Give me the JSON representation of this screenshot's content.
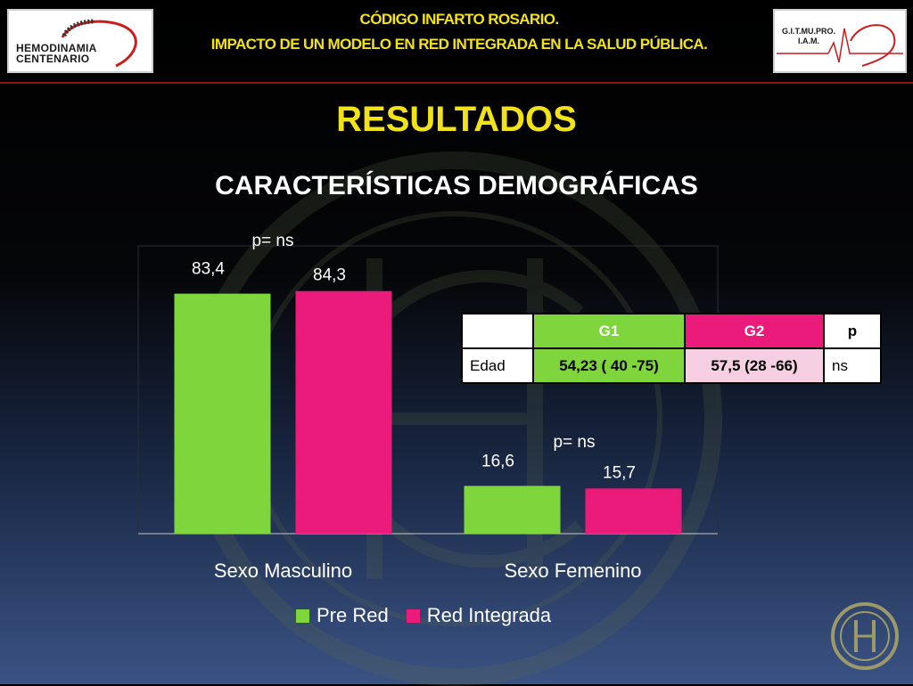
{
  "header": {
    "title_line1": "CÓDIGO INFARTO ROSARIO.",
    "title_line2": "IMPACTO DE UN MODELO EN RED INTEGRADA EN LA SALUD PÚBLICA.",
    "logo_left_line1": "HEMODINAMIA",
    "logo_left_line2": "CENTENARIO",
    "logo_right_line1": "G.I.T.MU.PRO.",
    "logo_right_line2": "I.A.M."
  },
  "section_title": "RESULTADOS",
  "subtitle": "CARACTERÍSTICAS DEMOGRÁFICAS",
  "chart_data": {
    "type": "bar",
    "categories": [
      "Sexo Masculino",
      "Sexo Femenino"
    ],
    "series": [
      {
        "name": "Pre Red",
        "values": [
          83.4,
          16.6
        ],
        "labels": [
          "83,4",
          "16,6"
        ],
        "color": "#7ed63c"
      },
      {
        "name": "Red Integrada",
        "values": [
          84.3,
          15.7
        ],
        "labels": [
          "84,3",
          "15,7"
        ],
        "color": "#ea1b7a"
      }
    ],
    "annotations": [
      "p= ns",
      "p= ns"
    ],
    "ylim": [
      0,
      100
    ],
    "legend": "bottom"
  },
  "table": {
    "header": [
      "",
      "G1",
      "G2",
      "p"
    ],
    "rows": [
      [
        "Edad",
        "54,23 ( 40 -75)",
        "57,5 (28 -66)",
        "ns"
      ]
    ],
    "colors": {
      "g1": "#7ed63c",
      "g2": "#ea1b7a",
      "g2_cell": "#f6d0e2"
    }
  }
}
